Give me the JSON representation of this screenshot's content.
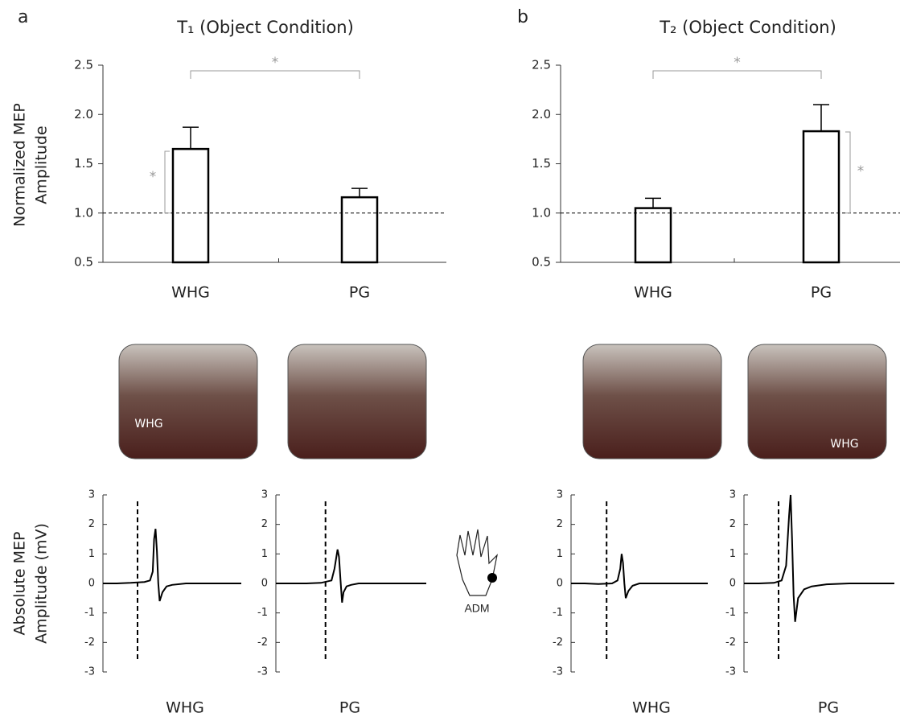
{
  "figure": {
    "photo_labels": [
      "WHG",
      "WHG"
    ],
    "inset_label": "ADM"
  },
  "chart_data": [
    {
      "type": "bar",
      "panel": "a",
      "title": "T₁ (Object Condition)",
      "ylabel": [
        "Normalized MEP",
        "Amplitude"
      ],
      "categories": [
        "WHG",
        "PG"
      ],
      "values": [
        1.65,
        1.16
      ],
      "errors": [
        0.22,
        0.09
      ],
      "color": "#000000",
      "ylim": [
        0.5,
        2.5
      ],
      "yticks": [
        0.5,
        {
          "value": 1,
          "label": "1.0"
        },
        1.5,
        {
          "value": 2,
          "label": "2.0"
        },
        2.5
      ],
      "refline": 1,
      "annotations": [
        "*",
        "*"
      ]
    },
    {
      "type": "bar",
      "panel": "b",
      "title": "T₂ (Object Condition)",
      "categories": [
        "WHG",
        "PG"
      ],
      "values": [
        1.05,
        1.83
      ],
      "errors": [
        0.1,
        0.27
      ],
      "color": "#000000",
      "ylim": [
        0.5,
        2.5
      ],
      "yticks": [
        0.5,
        {
          "value": 1,
          "label": "1.0"
        },
        1.5,
        {
          "value": 2,
          "label": "2.0"
        },
        2.5
      ],
      "refline": 1,
      "annotations": [
        "*",
        "*"
      ]
    },
    {
      "type": "line",
      "ylabel": [
        "Absolute MEP",
        "Amplitude (mV)"
      ],
      "label": "WHG",
      "color": "#000000",
      "x": [
        0,
        10,
        20,
        30,
        34,
        36,
        37,
        38,
        39,
        40,
        41,
        43,
        46,
        50,
        60,
        80,
        100
      ],
      "values": [
        0,
        0,
        0.02,
        0.05,
        0.1,
        0.4,
        1.5,
        1.85,
        1.1,
        0,
        -0.6,
        -0.3,
        -0.1,
        -0.05,
        0,
        0,
        0
      ],
      "xlim": [
        0,
        100
      ],
      "trigger_x": 25,
      "ylim": [
        -3,
        3
      ],
      "yticks": [
        -3,
        -2,
        -1,
        0,
        1,
        2,
        3
      ]
    },
    {
      "type": "line",
      "label": "PG",
      "color": "#000000",
      "x": [
        0,
        10,
        20,
        30,
        37,
        39,
        41,
        42,
        43,
        44,
        45,
        47,
        50,
        55,
        65,
        80,
        100
      ],
      "values": [
        0,
        0,
        0,
        0.02,
        0.1,
        0.5,
        1.15,
        0.9,
        0.1,
        -0.65,
        -0.3,
        -0.1,
        -0.05,
        0,
        0,
        0,
        0
      ],
      "xlim": [
        0,
        100
      ],
      "trigger_x": 33,
      "ylim": [
        -3,
        3
      ],
      "yticks": [
        -3,
        -2,
        -1,
        0,
        1,
        2,
        3
      ]
    },
    {
      "type": "line",
      "label": "WHG",
      "color": "#000000",
      "x": [
        0,
        10,
        20,
        30,
        34,
        36,
        37,
        38,
        39,
        40,
        42,
        45,
        50,
        60,
        80,
        100
      ],
      "values": [
        0,
        0,
        -0.02,
        0,
        0.1,
        0.5,
        1.0,
        0.7,
        0,
        -0.5,
        -0.25,
        -0.08,
        0,
        0,
        0,
        0
      ],
      "xlim": [
        0,
        100
      ],
      "trigger_x": 26,
      "ylim": [
        -3,
        3
      ],
      "yticks": [
        -3,
        -2,
        -1,
        0,
        1,
        2,
        3
      ]
    },
    {
      "type": "line",
      "label": "PG",
      "color": "#000000",
      "x": [
        0,
        10,
        20,
        25,
        28,
        30,
        31,
        32,
        33,
        34,
        36,
        40,
        45,
        55,
        70,
        100
      ],
      "values": [
        0,
        0,
        0.02,
        0.1,
        0.6,
        2.3,
        3.0,
        1.5,
        -0.4,
        -1.3,
        -0.5,
        -0.2,
        -0.1,
        -0.03,
        0,
        0
      ],
      "xlim": [
        0,
        100
      ],
      "trigger_x": 23,
      "ylim": [
        -3,
        3
      ],
      "yticks": [
        -3,
        -2,
        -1,
        0,
        1,
        2,
        3
      ]
    }
  ]
}
